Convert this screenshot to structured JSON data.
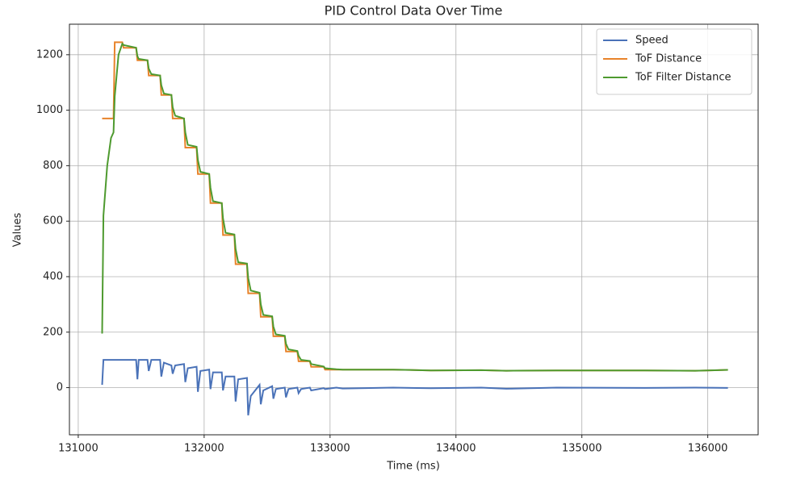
{
  "chart_data": {
    "type": "line",
    "title": "PID Control Data Over Time",
    "xlabel": "Time (ms)",
    "ylabel": "Values",
    "x": [
      131190,
      131200,
      131230,
      131260,
      131280,
      131290,
      131320,
      131350,
      131360,
      131460,
      131470,
      131480,
      131550,
      131560,
      131580,
      131650,
      131660,
      131680,
      131740,
      131750,
      131770,
      131840,
      131850,
      131870,
      131940,
      131950,
      131970,
      132040,
      132050,
      132070,
      132140,
      132150,
      132170,
      132240,
      132250,
      132270,
      132340,
      132350,
      132370,
      132440,
      132450,
      132470,
      132540,
      132550,
      132570,
      132640,
      132650,
      132670,
      132740,
      132750,
      132770,
      132840,
      132850,
      132950,
      132960,
      133050,
      133100,
      133500,
      133800,
      134200,
      134400,
      134800,
      135500,
      135900,
      136160
    ],
    "series": [
      {
        "name": "Speed",
        "color": "#4a72b8",
        "values": [
          10,
          100,
          100,
          100,
          100,
          100,
          100,
          100,
          100,
          100,
          30,
          100,
          100,
          60,
          100,
          100,
          40,
          90,
          80,
          50,
          80,
          85,
          20,
          70,
          75,
          -15,
          60,
          65,
          -5,
          55,
          55,
          -10,
          40,
          40,
          -50,
          30,
          35,
          -100,
          -30,
          10,
          -60,
          -10,
          5,
          -40,
          -5,
          0,
          -35,
          -5,
          0,
          -20,
          -5,
          0,
          -10,
          -2,
          -5,
          0,
          -3,
          0,
          -2,
          0,
          -4,
          0,
          -1,
          0,
          -1
        ]
      },
      {
        "name": "ToF Distance",
        "color": "#e8832a",
        "values": [
          970,
          970,
          970,
          970,
          970,
          1245,
          1245,
          1245,
          1225,
          1225,
          1180,
          1180,
          1180,
          1125,
          1125,
          1125,
          1055,
          1055,
          1055,
          970,
          970,
          970,
          865,
          865,
          865,
          770,
          770,
          770,
          665,
          665,
          665,
          550,
          550,
          550,
          445,
          445,
          445,
          340,
          340,
          340,
          255,
          255,
          255,
          185,
          185,
          185,
          130,
          130,
          130,
          95,
          95,
          95,
          75,
          75,
          65,
          65,
          65,
          65,
          62,
          63,
          61,
          62,
          62,
          61,
          64
        ]
      },
      {
        "name": "ToF Filter Distance",
        "color": "#4e9a2f",
        "values": [
          195,
          620,
          800,
          900,
          920,
          1050,
          1200,
          1240,
          1235,
          1225,
          1195,
          1185,
          1180,
          1150,
          1130,
          1125,
          1090,
          1060,
          1055,
          1010,
          980,
          970,
          920,
          875,
          868,
          820,
          778,
          770,
          720,
          672,
          665,
          610,
          558,
          552,
          500,
          452,
          447,
          395,
          350,
          342,
          300,
          262,
          257,
          220,
          192,
          187,
          158,
          138,
          132,
          115,
          100,
          96,
          85,
          76,
          70,
          66,
          65,
          65,
          62,
          63,
          61,
          62,
          62,
          61,
          64
        ]
      }
    ],
    "xlim": [
      130930,
      136400
    ],
    "ylim": [
      -170,
      1310
    ],
    "xticks": [
      131000,
      132000,
      133000,
      134000,
      135000,
      136000
    ],
    "yticks": [
      0,
      200,
      400,
      600,
      800,
      1000,
      1200
    ],
    "grid": true,
    "legend": "upper right"
  }
}
